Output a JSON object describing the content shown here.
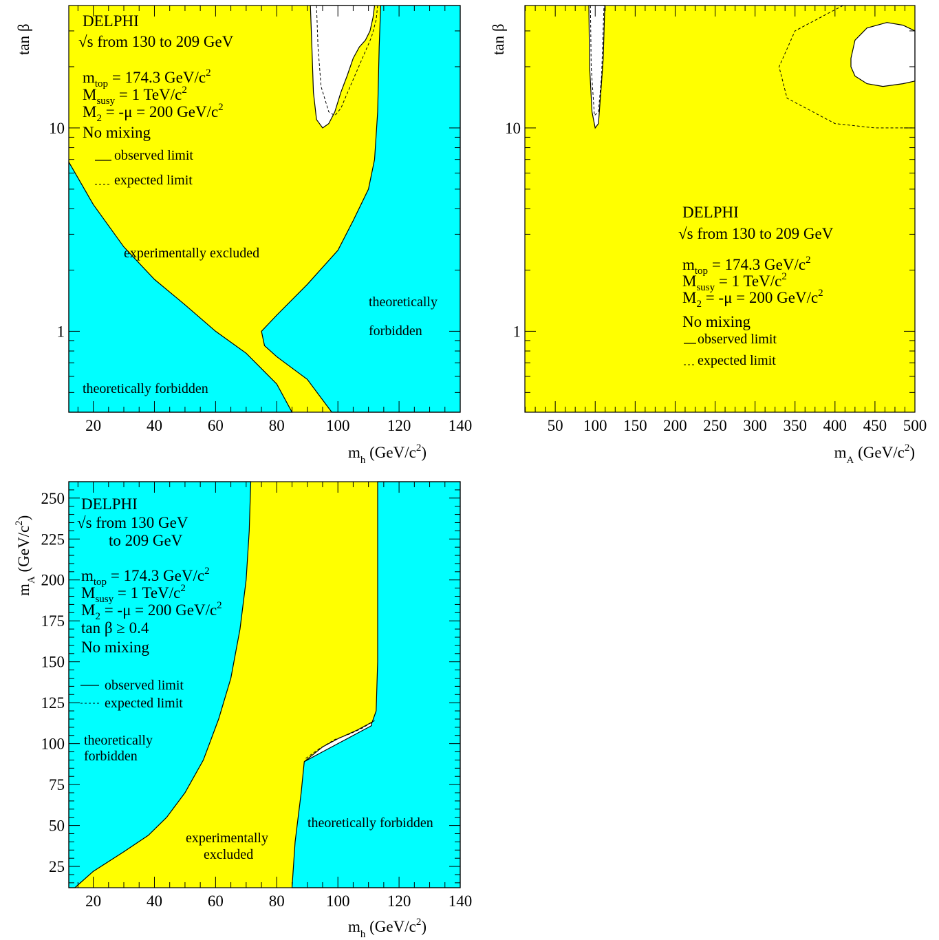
{
  "colors": {
    "excluded": "#ffff00",
    "forbidden": "#00ffff",
    "allowed": "#ffffff",
    "line": "#000000"
  },
  "chart_data": [
    {
      "type": "area",
      "panel": "top-left",
      "xlabel_main": "m",
      "xlabel_sub": "h",
      "xlabel_unit": " (GeV/c",
      "xlabel_sup": "2",
      "xlabel_close": ")",
      "ylabel": "tan β",
      "xlim": [
        12,
        140
      ],
      "ylim": [
        0.4,
        40
      ],
      "yscale": "log",
      "xticks": [
        20,
        40,
        60,
        80,
        100,
        120,
        140
      ],
      "yticks": [
        {
          "v": 1,
          "label": "1"
        },
        {
          "v": 10,
          "label": "10"
        }
      ],
      "text": {
        "exp": "DELPHI",
        "sqrt_s": "√s from 130 to 209 GeV",
        "mtop_main": "m",
        "mtop_sub": "top",
        "mtop_rest": " = 174.3 GeV/c",
        "mtop_sup": "2",
        "msusy_main": "M",
        "msusy_sub": "susy",
        "msusy_rest": " = 1 TeV/c",
        "msusy_sup": "2",
        "m2_main": "M",
        "m2_sub": "2",
        "m2_rest": " = -μ = 200 GeV/c",
        "m2_sup": "2",
        "mixing": "No mixing",
        "observed": "observed limit",
        "expected": "expected limit",
        "region_excl": "experimentally excluded",
        "region_theo_right1": "theoretically",
        "region_theo_right2": "forbidden",
        "region_theo_left": "theoretically forbidden"
      },
      "regions": {
        "excluded": "all remaining area",
        "forbidden_left": [
          [
            12,
            6.8
          ],
          [
            20,
            4.2
          ],
          [
            30,
            2.6
          ],
          [
            40,
            1.8
          ],
          [
            50,
            1.35
          ],
          [
            60,
            1.0
          ],
          [
            70,
            0.78
          ],
          [
            80,
            0.55
          ],
          [
            85,
            0.4
          ],
          [
            12,
            0.4
          ]
        ],
        "forbidden_right": [
          [
            114,
            40
          ],
          [
            113.5,
            25
          ],
          [
            113,
            12
          ],
          [
            112,
            7
          ],
          [
            110,
            5
          ],
          [
            105,
            3.5
          ],
          [
            100,
            2.5
          ],
          [
            90,
            1.7
          ],
          [
            80,
            1.2
          ],
          [
            75,
            1.0
          ],
          [
            76,
            0.85
          ],
          [
            80,
            0.75
          ],
          [
            90,
            0.58
          ],
          [
            98,
            0.4
          ],
          [
            140,
            0.4
          ],
          [
            140,
            40
          ]
        ],
        "allowed_observed": [
          [
            91,
            40
          ],
          [
            91.5,
            25
          ],
          [
            92,
            15
          ],
          [
            93,
            11
          ],
          [
            95,
            10
          ],
          [
            97,
            10.5
          ],
          [
            99,
            12
          ],
          [
            101,
            15
          ],
          [
            103,
            18
          ],
          [
            105,
            22
          ],
          [
            107,
            25
          ],
          [
            109,
            27
          ],
          [
            110.5,
            30
          ],
          [
            111.5,
            35
          ],
          [
            112,
            40
          ]
        ],
        "allowed_expected": [
          [
            93,
            40
          ],
          [
            93.5,
            25
          ],
          [
            94.5,
            16
          ],
          [
            97,
            12
          ],
          [
            99,
            11.5
          ],
          [
            101,
            12.5
          ],
          [
            104,
            16
          ],
          [
            108,
            22
          ],
          [
            111,
            28
          ],
          [
            112.5,
            34
          ],
          [
            113,
            40
          ]
        ]
      }
    },
    {
      "type": "area",
      "panel": "top-right",
      "xlabel_main": "m",
      "xlabel_sub": "A",
      "xlabel_unit": " (GeV/c",
      "xlabel_sup": "2",
      "xlabel_close": ")",
      "ylabel": "tan β",
      "xlim": [
        12,
        500
      ],
      "ylim": [
        0.4,
        40
      ],
      "yscale": "log",
      "xticks": [
        50,
        100,
        150,
        200,
        250,
        300,
        350,
        400,
        450,
        500
      ],
      "yticks": [
        {
          "v": 1,
          "label": "1"
        },
        {
          "v": 10,
          "label": "10"
        }
      ],
      "text": {
        "exp": "DELPHI",
        "sqrt_s": "√s from 130 to 209 GeV",
        "mtop_main": "m",
        "mtop_sub": "top",
        "mtop_rest": " = 174.3 GeV/c",
        "mtop_sup": "2",
        "msusy_main": "M",
        "msusy_sub": "susy",
        "msusy_rest": " = 1 TeV/c",
        "msusy_sup": "2",
        "m2_main": "M",
        "m2_sub": "2",
        "m2_rest": " = -μ = 200 GeV/c",
        "m2_sup": "2",
        "mixing": "No mixing",
        "observed": "observed limit",
        "expected": "expected limit"
      },
      "regions": {
        "excluded": "all remaining area",
        "allowed_observed_a": [
          [
            92,
            40
          ],
          [
            93,
            20
          ],
          [
            96,
            12
          ],
          [
            100,
            10
          ],
          [
            104,
            10.5
          ],
          [
            107,
            15
          ],
          [
            110,
            22
          ],
          [
            112,
            40
          ]
        ],
        "allowed_observed_b": [
          [
            420,
            22
          ],
          [
            425,
            27
          ],
          [
            440,
            31
          ],
          [
            465,
            33
          ],
          [
            485,
            32
          ],
          [
            500,
            30
          ],
          [
            500,
            17
          ],
          [
            485,
            16.5
          ],
          [
            460,
            16
          ],
          [
            440,
            16.5
          ],
          [
            425,
            18
          ],
          [
            420,
            20
          ]
        ],
        "expected_a": [
          [
            94,
            40
          ],
          [
            95,
            20
          ],
          [
            99,
            11.5
          ],
          [
            104,
            12
          ],
          [
            108,
            18
          ],
          [
            111,
            40
          ]
        ],
        "expected_b": [
          [
            410,
            40
          ],
          [
            350,
            30
          ],
          [
            330,
            20
          ],
          [
            340,
            14
          ],
          [
            400,
            10.5
          ],
          [
            450,
            10
          ],
          [
            500,
            10
          ]
        ]
      }
    },
    {
      "type": "area",
      "panel": "bottom-left",
      "xlabel_main": "m",
      "xlabel_sub": "h",
      "xlabel_unit": " (GeV/c",
      "xlabel_sup": "2",
      "xlabel_close": ")",
      "ylabel_main": "m",
      "ylabel_sub": "A",
      "ylabel_unit": " (GeV/c",
      "ylabel_sup": "2",
      "ylabel_close": ")",
      "xlim": [
        12,
        140
      ],
      "ylim": [
        12,
        260
      ],
      "yscale": "linear",
      "xticks": [
        20,
        40,
        60,
        80,
        100,
        120,
        140
      ],
      "yticks": [
        {
          "v": 25,
          "label": "25"
        },
        {
          "v": 50,
          "label": "50"
        },
        {
          "v": 75,
          "label": "75"
        },
        {
          "v": 100,
          "label": "100"
        },
        {
          "v": 125,
          "label": "125"
        },
        {
          "v": 150,
          "label": "150"
        },
        {
          "v": 175,
          "label": "175"
        },
        {
          "v": 200,
          "label": "200"
        },
        {
          "v": 225,
          "label": "225"
        },
        {
          "v": 250,
          "label": "250"
        }
      ],
      "text": {
        "exp": "DELPHI",
        "sqrt_s": "√s from 130 GeV",
        "sqrt_s2": "to 209 GeV",
        "mtop_main": "m",
        "mtop_sub": "top",
        "mtop_rest": " = 174.3 GeV/c",
        "mtop_sup": "2",
        "msusy_main": "M",
        "msusy_sub": "susy",
        "msusy_rest": " = 1 TeV/c",
        "msusy_sup": "2",
        "m2_main": "M",
        "m2_sub": "2",
        "m2_rest": " = -μ = 200 GeV/c",
        "m2_sup": "2",
        "tanb": "tan β ≥ 0.4",
        "mixing": "No mixing",
        "observed": "observed limit",
        "expected": "expected limit",
        "region_theo_left1": "theoretically",
        "region_theo_left2": "forbidden",
        "region_excl1": "experimentally",
        "region_excl2": "excluded",
        "region_theo_right": "theoretically forbidden"
      },
      "regions": {
        "excluded": "all remaining area",
        "forbidden_left": [
          [
            12,
            12
          ],
          [
            12,
            260
          ],
          [
            71.5,
            260
          ],
          [
            71,
            230
          ],
          [
            70,
            200
          ],
          [
            68,
            170
          ],
          [
            65,
            140
          ],
          [
            61,
            115
          ],
          [
            56,
            90
          ],
          [
            50,
            70
          ],
          [
            44,
            55
          ],
          [
            38,
            44
          ],
          [
            30,
            34
          ],
          [
            20,
            22
          ],
          [
            14,
            12
          ]
        ],
        "forbidden_right": [
          [
            85,
            12
          ],
          [
            86,
            40
          ],
          [
            88,
            70
          ],
          [
            89,
            89
          ],
          [
            95,
            97
          ],
          [
            100,
            102
          ],
          [
            106,
            107
          ],
          [
            111,
            112
          ],
          [
            112.5,
            120
          ],
          [
            113,
            150
          ],
          [
            113,
            200
          ],
          [
            113,
            260
          ],
          [
            140,
            260
          ],
          [
            140,
            12
          ]
        ],
        "allowed_observed": [
          [
            89,
            89
          ],
          [
            95,
            98
          ],
          [
            100,
            103
          ],
          [
            106,
            108
          ],
          [
            111,
            113
          ],
          [
            111,
            111
          ],
          [
            106,
            106
          ],
          [
            100,
            100
          ],
          [
            94,
            94
          ],
          [
            89,
            89
          ]
        ],
        "expected": [
          [
            89.5,
            91
          ],
          [
            94,
            97
          ],
          [
            99,
            102.5
          ],
          [
            104,
            106
          ],
          [
            108,
            109.5
          ],
          [
            112,
            114
          ]
        ]
      }
    }
  ]
}
